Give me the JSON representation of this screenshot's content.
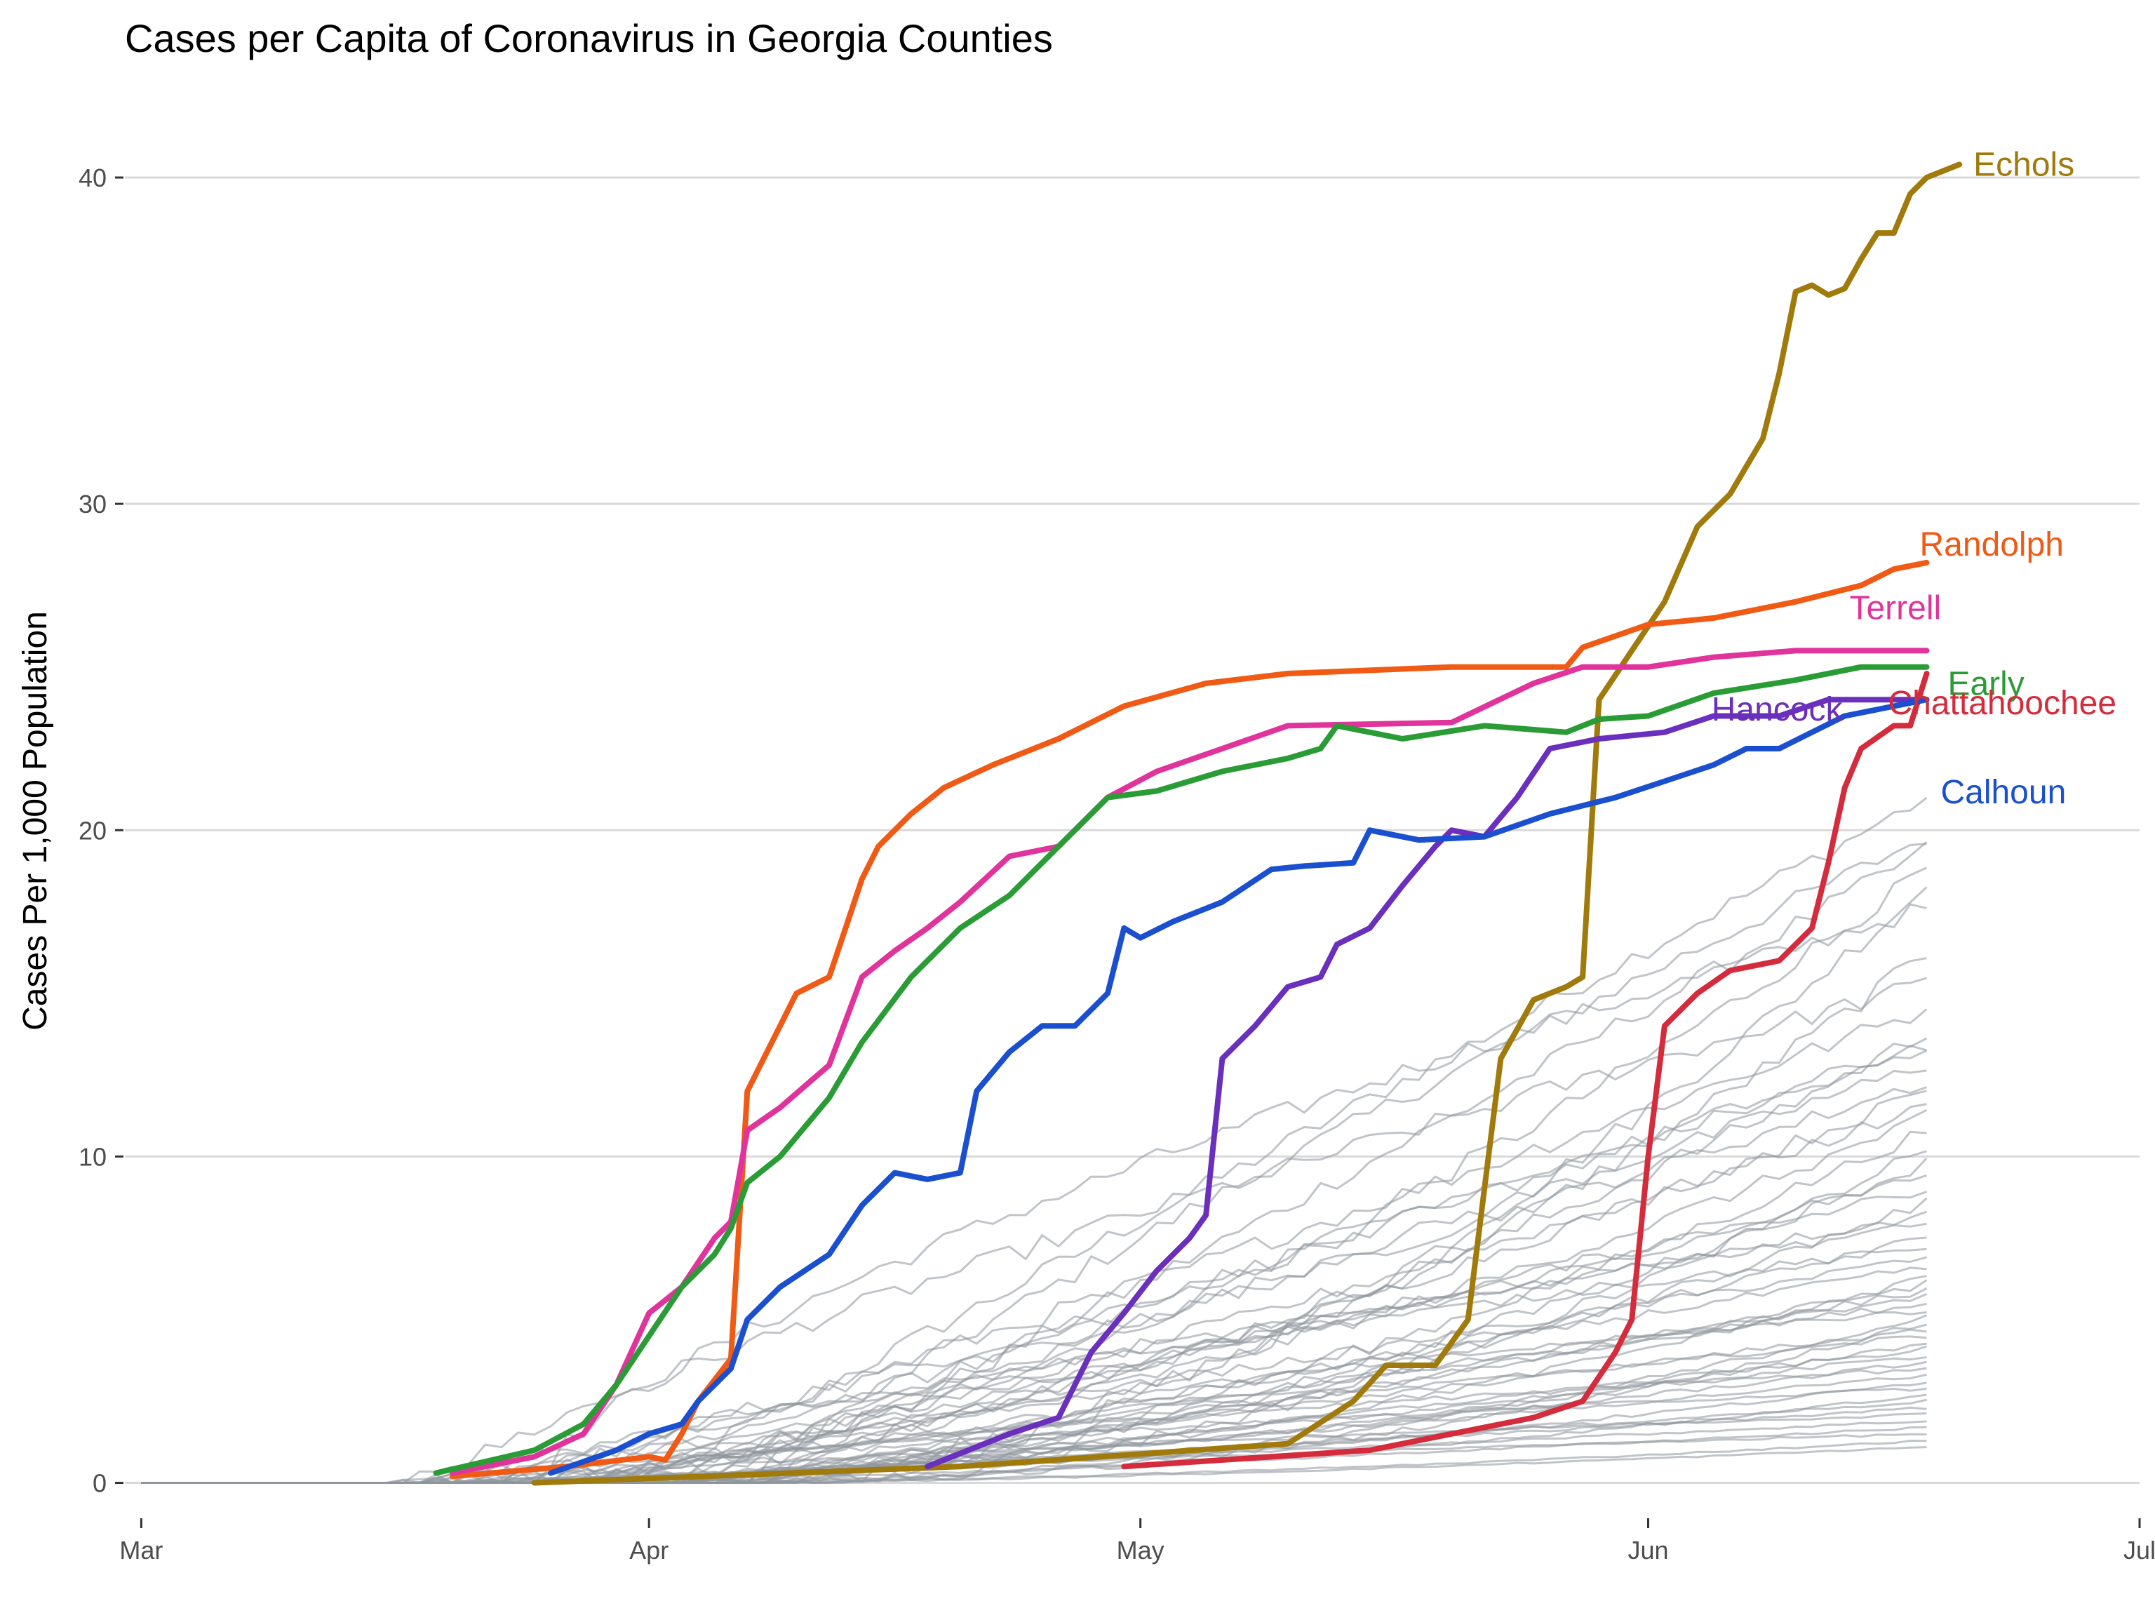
{
  "chart_data": {
    "type": "line",
    "title": "Cases per Capita of Coronavirus in Georgia Counties",
    "xlabel": "",
    "ylabel": "Cases Per 1,000 Population",
    "x_axis": {
      "type": "date",
      "range": [
        "2020-02-29",
        "2020-07-01"
      ],
      "ticks": [
        {
          "date": "2020-03-01",
          "label": "Mar"
        },
        {
          "date": "2020-04-01",
          "label": "Apr"
        },
        {
          "date": "2020-05-01",
          "label": "May"
        },
        {
          "date": "2020-06-01",
          "label": "Jun"
        },
        {
          "date": "2020-07-01",
          "label": "Jul"
        }
      ]
    },
    "y_axis": {
      "range": [
        -1,
        42
      ],
      "ticks": [
        0,
        10,
        20,
        30,
        40
      ]
    },
    "grid": true,
    "legend": "none (series labelled directly at line ends)",
    "highlighted_series": [
      {
        "name": "Echols",
        "color": "#a07a0b",
        "points": [
          [
            "2020-03-25",
            0.0
          ],
          [
            "2020-04-20",
            0.5
          ],
          [
            "2020-05-10",
            1.2
          ],
          [
            "2020-05-14",
            2.5
          ],
          [
            "2020-05-16",
            3.6
          ],
          [
            "2020-05-19",
            3.6
          ],
          [
            "2020-05-21",
            5.0
          ],
          [
            "2020-05-22",
            9.0
          ],
          [
            "2020-05-23",
            13.0
          ],
          [
            "2020-05-25",
            14.8
          ],
          [
            "2020-05-27",
            15.2
          ],
          [
            "2020-05-28",
            15.5
          ],
          [
            "2020-05-29",
            24.0
          ],
          [
            "2020-05-31",
            25.5
          ],
          [
            "2020-06-02",
            27.0
          ],
          [
            "2020-06-04",
            29.3
          ],
          [
            "2020-06-06",
            30.3
          ],
          [
            "2020-06-08",
            32.0
          ],
          [
            "2020-06-09",
            34.0
          ],
          [
            "2020-06-10",
            36.5
          ],
          [
            "2020-06-11",
            36.7
          ],
          [
            "2020-06-12",
            36.4
          ],
          [
            "2020-06-13",
            36.6
          ],
          [
            "2020-06-14",
            37.5
          ],
          [
            "2020-06-15",
            38.3
          ],
          [
            "2020-06-16",
            38.3
          ],
          [
            "2020-06-17",
            39.5
          ],
          [
            "2020-06-18",
            40.0
          ],
          [
            "2020-06-20",
            40.4
          ]
        ]
      },
      {
        "name": "Randolph",
        "color": "#f05a14",
        "points": [
          [
            "2020-03-20",
            0.2
          ],
          [
            "2020-03-27",
            0.5
          ],
          [
            "2020-04-01",
            0.8
          ],
          [
            "2020-04-02",
            0.7
          ],
          [
            "2020-04-03",
            1.5
          ],
          [
            "2020-04-04",
            2.5
          ],
          [
            "2020-04-06",
            3.8
          ],
          [
            "2020-04-07",
            12.0
          ],
          [
            "2020-04-08",
            13.0
          ],
          [
            "2020-04-09",
            14.0
          ],
          [
            "2020-04-10",
            15.0
          ],
          [
            "2020-04-12",
            15.5
          ],
          [
            "2020-04-13",
            17.0
          ],
          [
            "2020-04-14",
            18.5
          ],
          [
            "2020-04-15",
            19.5
          ],
          [
            "2020-04-17",
            20.5
          ],
          [
            "2020-04-19",
            21.3
          ],
          [
            "2020-04-22",
            22.0
          ],
          [
            "2020-04-26",
            22.8
          ],
          [
            "2020-04-30",
            23.8
          ],
          [
            "2020-05-05",
            24.5
          ],
          [
            "2020-05-10",
            24.8
          ],
          [
            "2020-05-20",
            25.0
          ],
          [
            "2020-05-27",
            25.0
          ],
          [
            "2020-05-28",
            25.6
          ],
          [
            "2020-06-01",
            26.3
          ],
          [
            "2020-06-05",
            26.5
          ],
          [
            "2020-06-10",
            27.0
          ],
          [
            "2020-06-14",
            27.5
          ],
          [
            "2020-06-16",
            28.0
          ],
          [
            "2020-06-18",
            28.2
          ]
        ]
      },
      {
        "name": "Terrell",
        "color": "#e0349c",
        "points": [
          [
            "2020-03-20",
            0.3
          ],
          [
            "2020-03-25",
            0.8
          ],
          [
            "2020-03-28",
            1.5
          ],
          [
            "2020-03-30",
            3.0
          ],
          [
            "2020-04-01",
            5.2
          ],
          [
            "2020-04-03",
            6.0
          ],
          [
            "2020-04-05",
            7.5
          ],
          [
            "2020-04-06",
            8.0
          ],
          [
            "2020-04-07",
            10.8
          ],
          [
            "2020-04-09",
            11.5
          ],
          [
            "2020-04-12",
            12.8
          ],
          [
            "2020-04-14",
            15.5
          ],
          [
            "2020-04-16",
            16.3
          ],
          [
            "2020-04-18",
            17.0
          ],
          [
            "2020-04-20",
            17.8
          ],
          [
            "2020-04-23",
            19.2
          ],
          [
            "2020-04-26",
            19.5
          ],
          [
            "2020-04-29",
            21.0
          ],
          [
            "2020-05-02",
            21.8
          ],
          [
            "2020-05-06",
            22.5
          ],
          [
            "2020-05-10",
            23.2
          ],
          [
            "2020-05-20",
            23.3
          ],
          [
            "2020-05-25",
            24.5
          ],
          [
            "2020-05-28",
            25.0
          ],
          [
            "2020-06-01",
            25.0
          ],
          [
            "2020-06-05",
            25.3
          ],
          [
            "2020-06-10",
            25.5
          ],
          [
            "2020-06-18",
            25.5
          ]
        ]
      },
      {
        "name": "Early",
        "color": "#2a9c36",
        "points": [
          [
            "2020-03-19",
            0.3
          ],
          [
            "2020-03-25",
            1.0
          ],
          [
            "2020-03-28",
            1.8
          ],
          [
            "2020-03-30",
            3.0
          ],
          [
            "2020-04-01",
            4.5
          ],
          [
            "2020-04-03",
            6.0
          ],
          [
            "2020-04-05",
            7.0
          ],
          [
            "2020-04-06",
            7.8
          ],
          [
            "2020-04-07",
            9.2
          ],
          [
            "2020-04-09",
            10.0
          ],
          [
            "2020-04-12",
            11.8
          ],
          [
            "2020-04-14",
            13.5
          ],
          [
            "2020-04-17",
            15.5
          ],
          [
            "2020-04-20",
            17.0
          ],
          [
            "2020-04-23",
            18.0
          ],
          [
            "2020-04-26",
            19.5
          ],
          [
            "2020-04-29",
            21.0
          ],
          [
            "2020-05-02",
            21.2
          ],
          [
            "2020-05-06",
            21.8
          ],
          [
            "2020-05-10",
            22.2
          ],
          [
            "2020-05-12",
            22.5
          ],
          [
            "2020-05-13",
            23.2
          ],
          [
            "2020-05-17",
            22.8
          ],
          [
            "2020-05-22",
            23.2
          ],
          [
            "2020-05-27",
            23.0
          ],
          [
            "2020-05-29",
            23.4
          ],
          [
            "2020-06-01",
            23.5
          ],
          [
            "2020-06-05",
            24.2
          ],
          [
            "2020-06-10",
            24.6
          ],
          [
            "2020-06-14",
            25.0
          ],
          [
            "2020-06-18",
            25.0
          ]
        ]
      },
      {
        "name": "Hancock",
        "color": "#6a2fbd",
        "points": [
          [
            "2020-04-18",
            0.5
          ],
          [
            "2020-04-23",
            1.5
          ],
          [
            "2020-04-26",
            2.0
          ],
          [
            "2020-04-28",
            4.0
          ],
          [
            "2020-04-30",
            5.2
          ],
          [
            "2020-05-02",
            6.5
          ],
          [
            "2020-05-04",
            7.5
          ],
          [
            "2020-05-05",
            8.2
          ],
          [
            "2020-05-06",
            13.0
          ],
          [
            "2020-05-08",
            14.0
          ],
          [
            "2020-05-10",
            15.2
          ],
          [
            "2020-05-12",
            15.5
          ],
          [
            "2020-05-13",
            16.5
          ],
          [
            "2020-05-15",
            17.0
          ],
          [
            "2020-05-17",
            18.3
          ],
          [
            "2020-05-19",
            19.5
          ],
          [
            "2020-05-20",
            20.0
          ],
          [
            "2020-05-22",
            19.8
          ],
          [
            "2020-05-24",
            21.0
          ],
          [
            "2020-05-26",
            22.5
          ],
          [
            "2020-05-29",
            22.8
          ],
          [
            "2020-06-02",
            23.0
          ],
          [
            "2020-06-05",
            23.5
          ],
          [
            "2020-06-09",
            23.5
          ],
          [
            "2020-06-12",
            24.0
          ],
          [
            "2020-06-15",
            24.0
          ],
          [
            "2020-06-18",
            24.0
          ]
        ]
      },
      {
        "name": "Chattahoochee",
        "color": "#d42c3c",
        "points": [
          [
            "2020-04-30",
            0.5
          ],
          [
            "2020-05-15",
            1.0
          ],
          [
            "2020-05-25",
            2.0
          ],
          [
            "2020-05-28",
            2.5
          ],
          [
            "2020-05-30",
            4.0
          ],
          [
            "2020-05-31",
            5.0
          ],
          [
            "2020-06-01",
            10.0
          ],
          [
            "2020-06-02",
            14.0
          ],
          [
            "2020-06-04",
            15.0
          ],
          [
            "2020-06-06",
            15.7
          ],
          [
            "2020-06-09",
            16.0
          ],
          [
            "2020-06-11",
            17.0
          ],
          [
            "2020-06-12",
            19.0
          ],
          [
            "2020-06-13",
            21.3
          ],
          [
            "2020-06-14",
            22.5
          ],
          [
            "2020-06-16",
            23.2
          ],
          [
            "2020-06-17",
            23.2
          ],
          [
            "2020-06-18",
            24.8
          ]
        ]
      },
      {
        "name": "Calhoun",
        "color": "#1a4fcf",
        "points": [
          [
            "2020-03-26",
            0.3
          ],
          [
            "2020-03-30",
            1.0
          ],
          [
            "2020-04-01",
            1.5
          ],
          [
            "2020-04-03",
            1.8
          ],
          [
            "2020-04-04",
            2.5
          ],
          [
            "2020-04-06",
            3.5
          ],
          [
            "2020-04-07",
            5.0
          ],
          [
            "2020-04-09",
            6.0
          ],
          [
            "2020-04-12",
            7.0
          ],
          [
            "2020-04-14",
            8.5
          ],
          [
            "2020-04-16",
            9.5
          ],
          [
            "2020-04-18",
            9.3
          ],
          [
            "2020-04-20",
            9.5
          ],
          [
            "2020-04-21",
            12.0
          ],
          [
            "2020-04-23",
            13.2
          ],
          [
            "2020-04-25",
            14.0
          ],
          [
            "2020-04-27",
            14.0
          ],
          [
            "2020-04-29",
            15.0
          ],
          [
            "2020-04-30",
            17.0
          ],
          [
            "2020-05-01",
            16.7
          ],
          [
            "2020-05-03",
            17.2
          ],
          [
            "2020-05-06",
            17.8
          ],
          [
            "2020-05-09",
            18.8
          ],
          [
            "2020-05-11",
            18.9
          ],
          [
            "2020-05-14",
            19.0
          ],
          [
            "2020-05-15",
            20.0
          ],
          [
            "2020-05-18",
            19.7
          ],
          [
            "2020-05-22",
            19.8
          ],
          [
            "2020-05-26",
            20.5
          ],
          [
            "2020-05-30",
            21.0
          ],
          [
            "2020-06-02",
            21.5
          ],
          [
            "2020-06-05",
            22.0
          ],
          [
            "2020-06-07",
            22.5
          ],
          [
            "2020-06-09",
            22.5
          ],
          [
            "2020-06-11",
            23.0
          ],
          [
            "2020-06-13",
            23.5
          ],
          [
            "2020-06-18",
            24.0
          ]
        ]
      }
    ],
    "background_series_color": "#8e959c",
    "background_series_final_values": [
      21.0,
      19.8,
      19.4,
      18.8,
      18.3,
      17.6,
      16.2,
      15.3,
      14.5,
      13.8,
      13.5,
      13.2,
      12.8,
      12.3,
      12.0,
      11.5,
      11.2,
      10.8,
      10.3,
      9.8,
      9.4,
      9.0,
      8.6,
      8.2,
      7.9,
      7.5,
      7.2,
      6.9,
      6.6,
      6.3,
      6.1,
      5.9,
      5.7,
      5.5,
      5.3,
      5.1,
      4.9,
      4.7,
      4.5,
      4.3,
      4.1,
      3.9,
      3.7,
      3.5,
      3.3,
      3.1,
      2.9,
      2.7,
      2.5,
      2.3,
      2.1,
      1.9,
      1.7,
      1.5,
      1.3,
      1.1
    ]
  }
}
